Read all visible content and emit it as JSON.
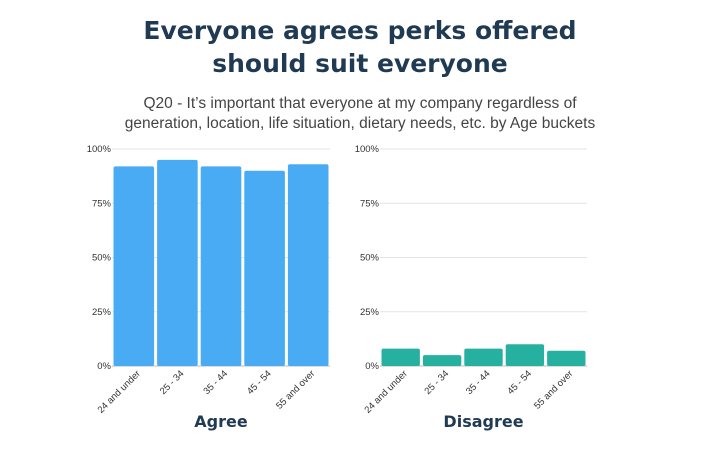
{
  "header": {
    "title_line1": "Everyone agrees perks offered",
    "title_line2": "should suit everyone",
    "subtitle_line1": "Q20 - It’s important that everyone at my company regardless of",
    "subtitle_line2": "generation, location, life situation, dietary needs, etc. by Age buckets"
  },
  "chart_data": [
    {
      "type": "bar",
      "panel_label": "Agree",
      "categories": [
        "24 and under",
        "25 - 34",
        "35 - 44",
        "45 - 54",
        "55 and over"
      ],
      "values": [
        92,
        95,
        92,
        90,
        93
      ],
      "ylim": [
        0,
        100
      ],
      "yticks": [
        "0%",
        "25%",
        "50%",
        "75%",
        "100%"
      ],
      "grid": true,
      "color": "#4aabf5"
    },
    {
      "type": "bar",
      "panel_label": "Disagree",
      "categories": [
        "24 and under",
        "25 - 34",
        "35 - 44",
        "45 - 54",
        "55 and over"
      ],
      "values": [
        8,
        5,
        8,
        10,
        7
      ],
      "ylim": [
        0,
        100
      ],
      "yticks": [
        "0%",
        "25%",
        "50%",
        "75%",
        "100%"
      ],
      "grid": true,
      "color": "#26b0a0"
    }
  ]
}
